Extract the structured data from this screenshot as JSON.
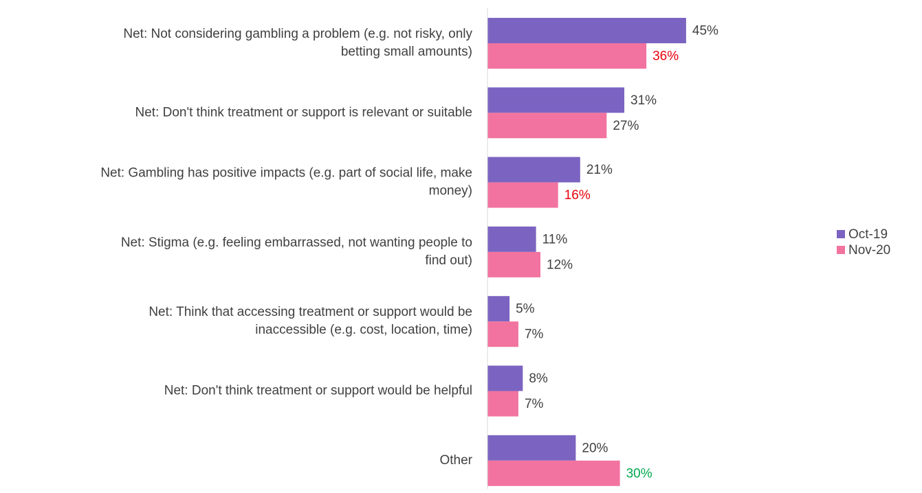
{
  "chart_data": {
    "type": "hbar",
    "categories": [
      "Net: Not considering gambling a problem (e.g. not risky, only\nbetting small amounts)",
      "Net: Don't think treatment or support is relevant or suitable",
      "Net: Gambling has positive impacts (e.g. part of social life, make\nmoney)",
      "Net: Stigma (e.g. feeling embarrassed, not wanting people to\nfind out)",
      "Net: Think that accessing treatment or support would be\ninaccessible (e.g. cost, location, time)",
      "Net: Don't think treatment or support would be helpful",
      "Other"
    ],
    "series": [
      {
        "name": "Oct-19",
        "color": "#7b64c1",
        "values": [
          45,
          31,
          21,
          11,
          5,
          8,
          20
        ],
        "value_labels": [
          "45%",
          "31%",
          "21%",
          "11%",
          "5%",
          "8%",
          "20%"
        ],
        "value_label_colors": [
          "#404040",
          "#404040",
          "#404040",
          "#404040",
          "#404040",
          "#404040",
          "#404040"
        ]
      },
      {
        "name": "Nov-20",
        "color": "#f2739f",
        "values": [
          36,
          27,
          16,
          12,
          7,
          7,
          30
        ],
        "value_labels": [
          "36%",
          "27%",
          "16%",
          "12%",
          "7%",
          "7%",
          "30%"
        ],
        "value_label_colors": [
          "#e8000b",
          "#404040",
          "#e8000b",
          "#404040",
          "#404040",
          "#404040",
          "#00a84f"
        ]
      }
    ],
    "xlim": [
      0,
      50
    ],
    "legend": "right"
  }
}
